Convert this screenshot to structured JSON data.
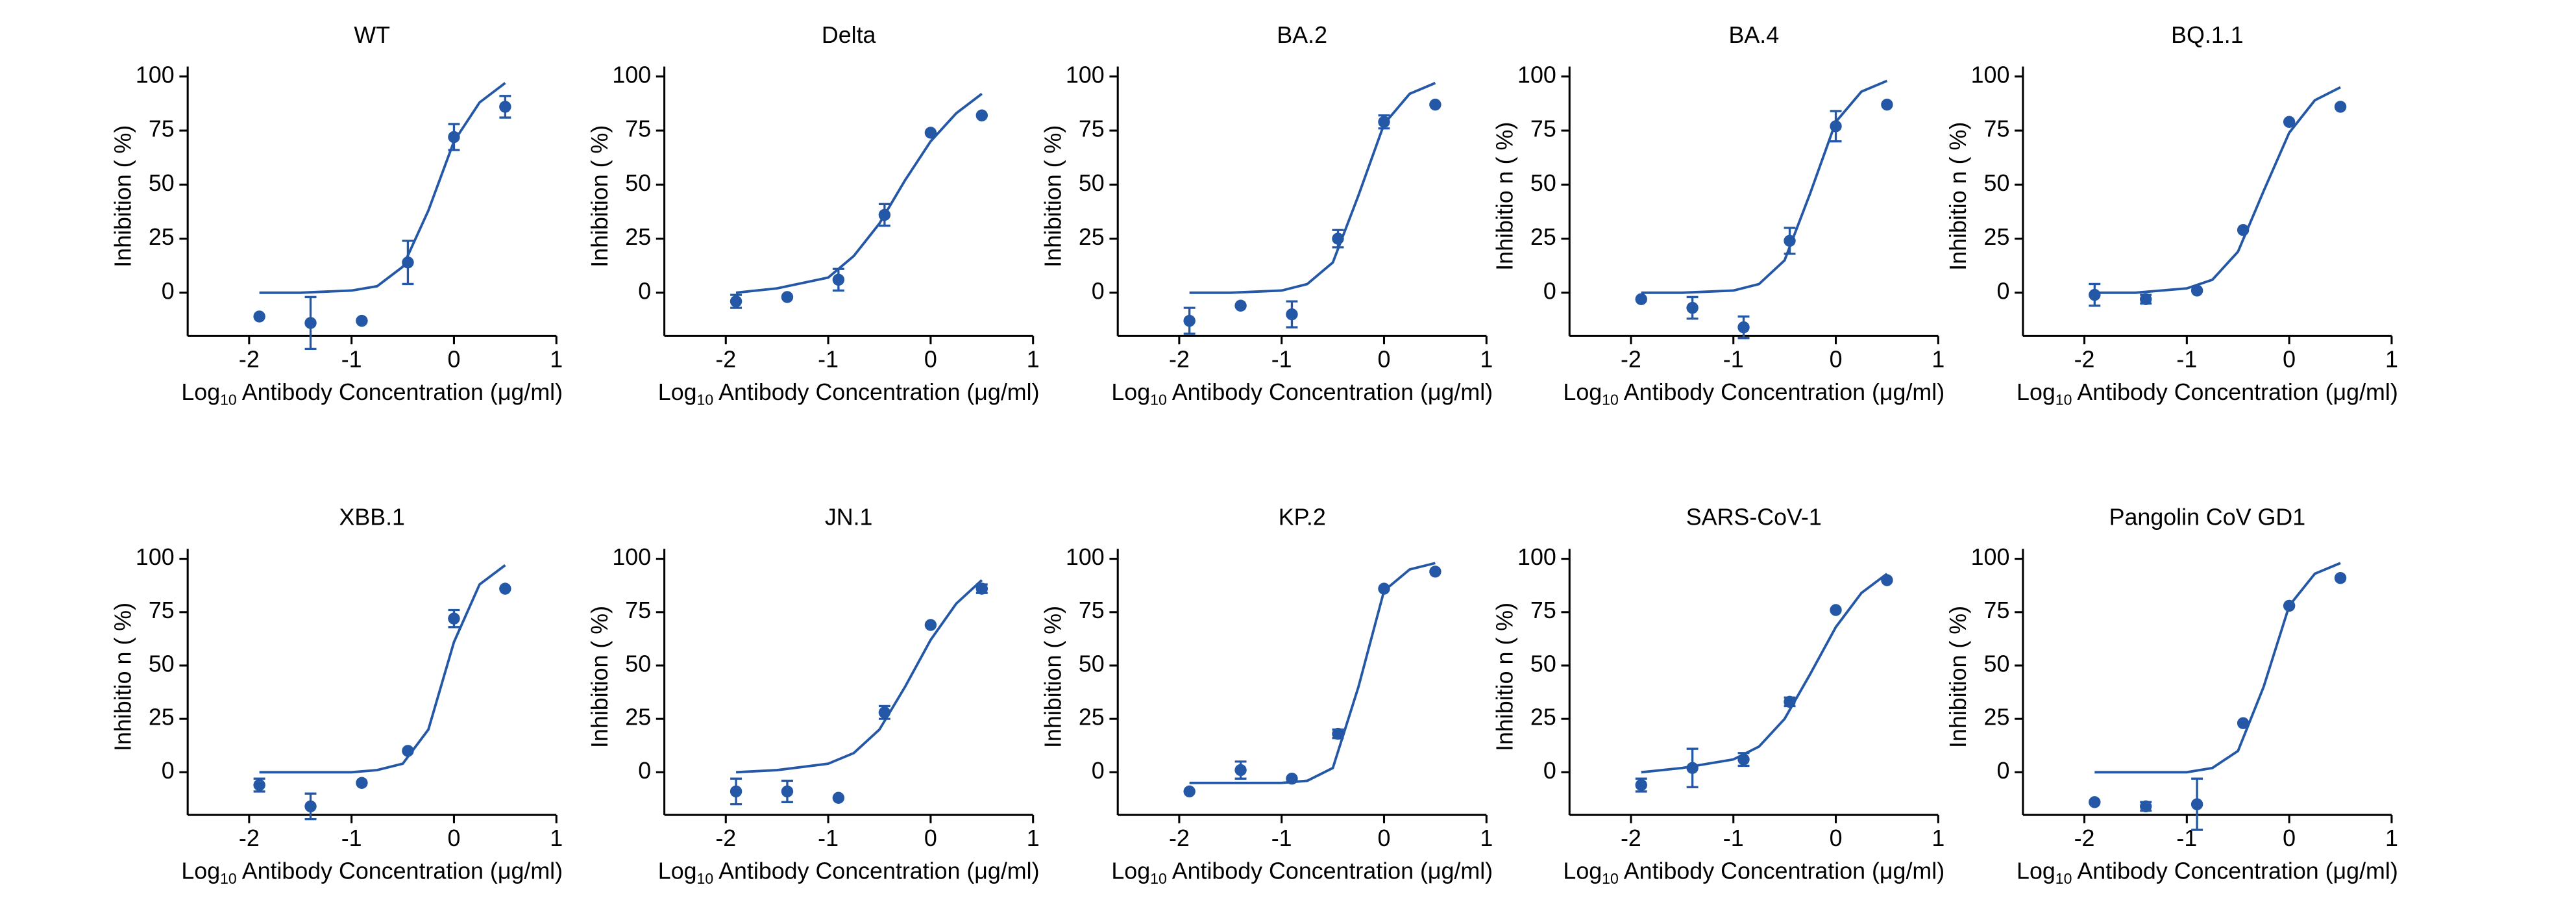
{
  "chart_data": [
    {
      "type": "scatter",
      "title": "WT",
      "xlabel": [
        "Log",
        "10",
        " Antibody Concentration (μg/ml)"
      ],
      "ylabel": "Inhibition ( %)",
      "color": "#2458a6",
      "x": [
        -1.9,
        -1.4,
        -0.9,
        -0.45,
        0,
        0.5
      ],
      "values": [
        -11,
        -14,
        -13,
        14,
        72,
        86
      ],
      "errors": [
        null,
        12,
        null,
        10,
        6,
        5
      ],
      "fit_x": [
        -1.9,
        -1.5,
        -1,
        -0.75,
        -0.5,
        -0.25,
        0,
        0.25,
        0.5
      ],
      "fit_values": [
        0,
        0,
        1,
        3,
        12,
        38,
        70,
        88,
        97
      ],
      "xlim": [
        -2.6,
        1
      ],
      "ylim": [
        -20,
        100
      ],
      "xticks": [
        -2,
        -1,
        0,
        1
      ],
      "yticks": [
        0,
        25,
        50,
        75,
        100
      ]
    },
    {
      "type": "scatter",
      "title": "Delta",
      "xlabel": [
        "Log",
        "10",
        " Antibody Concentration (μg/ml)"
      ],
      "ylabel": "Inhibition ( %)",
      "color": "#2458a6",
      "x": [
        -1.9,
        -1.4,
        -0.9,
        -0.45,
        0,
        0.5
      ],
      "values": [
        -4,
        -2,
        6,
        36,
        74,
        82
      ],
      "errors": [
        3,
        null,
        5,
        5,
        null,
        null
      ],
      "fit_x": [
        -1.9,
        -1.5,
        -1,
        -0.75,
        -0.5,
        -0.25,
        0,
        0.25,
        0.5
      ],
      "fit_values": [
        0,
        2,
        7,
        17,
        32,
        52,
        70,
        83,
        92
      ],
      "xlim": [
        -2.6,
        1
      ],
      "ylim": [
        -20,
        100
      ],
      "xticks": [
        -2,
        -1,
        0,
        1
      ],
      "yticks": [
        0,
        25,
        50,
        75,
        100
      ]
    },
    {
      "type": "scatter",
      "title": "BA.2",
      "xlabel": [
        "Log",
        "10",
        " Antibody Concentration (μg/ml)"
      ],
      "ylabel": "Inhibition ( %)",
      "color": "#2458a6",
      "x": [
        -1.9,
        -1.4,
        -0.9,
        -0.45,
        0,
        0.5
      ],
      "values": [
        -13,
        -6,
        -10,
        25,
        79,
        87
      ],
      "errors": [
        6,
        null,
        6,
        4,
        3,
        null
      ],
      "fit_x": [
        -1.9,
        -1.5,
        -1,
        -0.75,
        -0.5,
        -0.25,
        0,
        0.25,
        0.5
      ],
      "fit_values": [
        0,
        0,
        1,
        4,
        14,
        45,
        78,
        92,
        97
      ],
      "xlim": [
        -2.6,
        1
      ],
      "ylim": [
        -20,
        100
      ],
      "xticks": [
        -2,
        -1,
        0,
        1
      ],
      "yticks": [
        0,
        25,
        50,
        75,
        100
      ]
    },
    {
      "type": "scatter",
      "title": "BA.4",
      "xlabel": [
        "Log",
        "10",
        " Antibody Concentration (μg/ml)"
      ],
      "ylabel": "Inhibitio n ( %)",
      "color": "#2458a6",
      "x": [
        -1.9,
        -1.4,
        -0.9,
        -0.45,
        0,
        0.5
      ],
      "values": [
        -3,
        -7,
        -16,
        24,
        77,
        87
      ],
      "errors": [
        null,
        5,
        5,
        6,
        7,
        null
      ],
      "fit_x": [
        -1.9,
        -1.5,
        -1,
        -0.75,
        -0.5,
        -0.25,
        0,
        0.25,
        0.5
      ],
      "fit_values": [
        0,
        0,
        1,
        4,
        15,
        46,
        79,
        93,
        98
      ],
      "xlim": [
        -2.6,
        1
      ],
      "ylim": [
        -20,
        100
      ],
      "xticks": [
        -2,
        -1,
        0,
        1
      ],
      "yticks": [
        0,
        25,
        50,
        75,
        100
      ]
    },
    {
      "type": "scatter",
      "title": "BQ.1.1",
      "xlabel": [
        "Log",
        "10",
        " Antibody Concentration (μg/ml)"
      ],
      "ylabel": "Inhibitio n ( %)",
      "color": "#2458a6",
      "x": [
        -1.9,
        -1.4,
        -0.9,
        -0.45,
        0,
        0.5
      ],
      "values": [
        -1,
        -3,
        1,
        29,
        79,
        86
      ],
      "errors": [
        5,
        2,
        null,
        null,
        null,
        null
      ],
      "fit_x": [
        -1.9,
        -1.5,
        -1,
        -0.75,
        -0.5,
        -0.25,
        0,
        0.25,
        0.5
      ],
      "fit_values": [
        0,
        0,
        2,
        6,
        19,
        47,
        74,
        89,
        95
      ],
      "xlim": [
        -2.6,
        1
      ],
      "ylim": [
        -20,
        100
      ],
      "xticks": [
        -2,
        -1,
        0,
        1
      ],
      "yticks": [
        0,
        25,
        50,
        75,
        100
      ]
    },
    {
      "type": "scatter",
      "title": "XBB.1",
      "xlabel": [
        "Log",
        "10",
        " Antibody Concentration (μg/ml)"
      ],
      "ylabel": "Inhibitio n ( %)",
      "color": "#2458a6",
      "x": [
        -1.9,
        -1.4,
        -0.9,
        -0.45,
        0,
        0.5
      ],
      "values": [
        -6,
        -16,
        -5,
        10,
        72,
        86
      ],
      "errors": [
        3,
        6,
        null,
        null,
        4,
        null
      ],
      "fit_x": [
        -1.9,
        -1.5,
        -1,
        -0.75,
        -0.5,
        -0.25,
        0,
        0.25,
        0.5
      ],
      "fit_values": [
        0,
        0,
        0,
        1,
        4,
        20,
        61,
        88,
        97
      ],
      "xlim": [
        -2.6,
        1
      ],
      "ylim": [
        -20,
        100
      ],
      "xticks": [
        -2,
        -1,
        0,
        1
      ],
      "yticks": [
        0,
        25,
        50,
        75,
        100
      ]
    },
    {
      "type": "scatter",
      "title": "JN.1",
      "xlabel": [
        "Log",
        "10",
        " Antibody Concentration (μg/ml)"
      ],
      "ylabel": "Inhibition ( %)",
      "color": "#2458a6",
      "x": [
        -1.9,
        -1.4,
        -0.9,
        -0.45,
        0,
        0.5
      ],
      "values": [
        -9,
        -9,
        -12,
        28,
        69,
        86
      ],
      "errors": [
        6,
        5,
        null,
        3,
        null,
        2
      ],
      "fit_x": [
        -1.9,
        -1.5,
        -1,
        -0.75,
        -0.5,
        -0.25,
        0,
        0.25,
        0.5
      ],
      "fit_values": [
        0,
        1,
        4,
        9,
        20,
        40,
        62,
        79,
        90
      ],
      "xlim": [
        -2.6,
        1
      ],
      "ylim": [
        -20,
        100
      ],
      "xticks": [
        -2,
        -1,
        0,
        1
      ],
      "yticks": [
        0,
        25,
        50,
        75,
        100
      ]
    },
    {
      "type": "scatter",
      "title": "KP.2",
      "xlabel": [
        "Log",
        "10",
        " Antibody Concentration (μg/ml)"
      ],
      "ylabel": "Inhibition ( %)",
      "color": "#2458a6",
      "x": [
        -1.9,
        -1.4,
        -0.9,
        -0.45,
        0,
        0.5
      ],
      "values": [
        -9,
        1,
        -3,
        18,
        86,
        94
      ],
      "errors": [
        null,
        4,
        null,
        2,
        null,
        null
      ],
      "fit_x": [
        -1.9,
        -1.5,
        -1,
        -0.75,
        -0.5,
        -0.25,
        0,
        0.25,
        0.5
      ],
      "fit_values": [
        -5,
        -5,
        -5,
        -4,
        2,
        40,
        85,
        95,
        98
      ],
      "xlim": [
        -2.6,
        1
      ],
      "ylim": [
        -20,
        100
      ],
      "xticks": [
        -2,
        -1,
        0,
        1
      ],
      "yticks": [
        0,
        25,
        50,
        75,
        100
      ]
    },
    {
      "type": "scatter",
      "title": "SARS-CoV-1",
      "xlabel": [
        "Log",
        "10",
        " Antibody Concentration (μg/ml)"
      ],
      "ylabel": "Inhibitio n ( %)",
      "color": "#2458a6",
      "x": [
        -1.9,
        -1.4,
        -0.9,
        -0.45,
        0,
        0.5
      ],
      "values": [
        -6,
        2,
        6,
        33,
        76,
        90
      ],
      "errors": [
        3,
        9,
        3,
        2,
        null,
        null
      ],
      "fit_x": [
        -1.9,
        -1.5,
        -1,
        -0.75,
        -0.5,
        -0.25,
        0,
        0.25,
        0.5
      ],
      "fit_values": [
        0,
        2,
        6,
        12,
        25,
        46,
        68,
        84,
        93
      ],
      "xlim": [
        -2.6,
        1
      ],
      "ylim": [
        -20,
        100
      ],
      "xticks": [
        -2,
        -1,
        0,
        1
      ],
      "yticks": [
        0,
        25,
        50,
        75,
        100
      ]
    },
    {
      "type": "scatter",
      "title": "Pangolin CoV GD1",
      "xlabel": [
        "Log",
        "10",
        " Antibody Concentration (μg/ml)"
      ],
      "ylabel": "Inhibition ( %)",
      "color": "#2458a6",
      "x": [
        -1.9,
        -1.4,
        -0.9,
        -0.45,
        0,
        0.5
      ],
      "values": [
        -14,
        -16,
        -15,
        23,
        78,
        91
      ],
      "errors": [
        null,
        2,
        12,
        null,
        null,
        null
      ],
      "fit_x": [
        -1.9,
        -1.5,
        -1,
        -0.75,
        -0.5,
        -0.25,
        0,
        0.25,
        0.5
      ],
      "fit_values": [
        0,
        0,
        0,
        2,
        10,
        40,
        78,
        93,
        98
      ],
      "xlim": [
        -2.6,
        1
      ],
      "ylim": [
        -20,
        100
      ],
      "xticks": [
        -2,
        -1,
        0,
        1
      ],
      "yticks": [
        0,
        25,
        50,
        75,
        100
      ]
    }
  ]
}
